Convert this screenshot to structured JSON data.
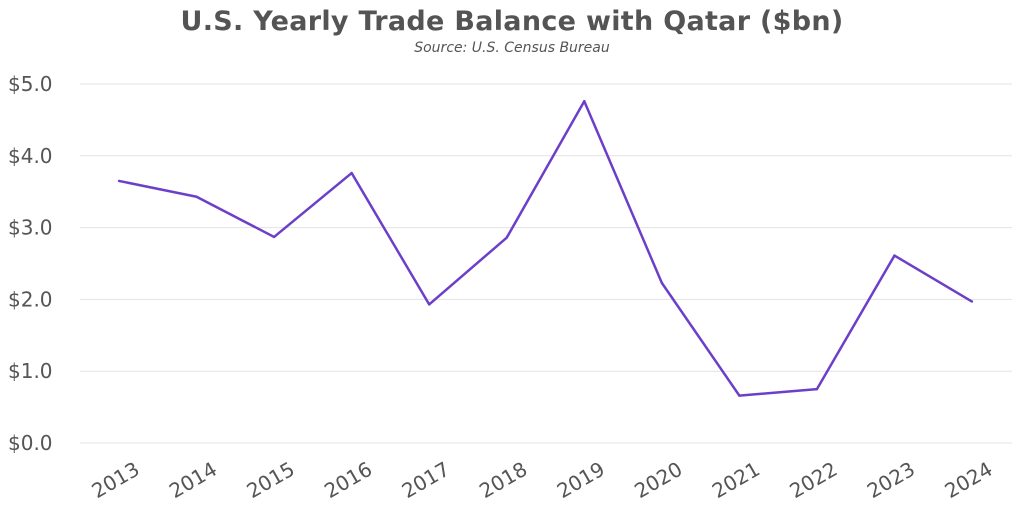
{
  "chart_data": {
    "type": "line",
    "title": "U.S. Yearly Trade Balance with Qatar ($bn)",
    "subtitle": "Source: U.S. Census Bureau",
    "xlabel": "",
    "ylabel": "",
    "categories": [
      "2013",
      "2014",
      "2015",
      "2016",
      "2017",
      "2018",
      "2019",
      "2020",
      "2021",
      "2022",
      "2023",
      "2024"
    ],
    "series": [
      {
        "values": [
          3.65,
          3.43,
          2.87,
          3.76,
          1.93,
          2.86,
          4.76,
          2.23,
          0.66,
          0.75,
          2.61,
          1.97
        ]
      }
    ],
    "ylim": [
      0,
      5
    ],
    "yticks": [
      0,
      1,
      2,
      3,
      4,
      5
    ],
    "ytick_labels": [
      "$0.0",
      "$1.0",
      "$2.0",
      "$3.0",
      "$4.0",
      "$5.0"
    ],
    "grid": true,
    "legend": "none",
    "line_color": "#6c3fc9",
    "grid_color": "#e3e3e3"
  }
}
